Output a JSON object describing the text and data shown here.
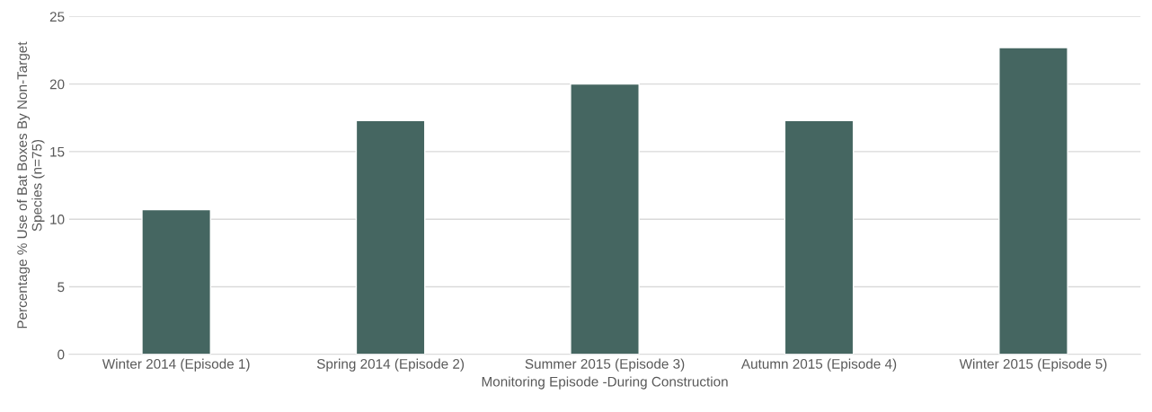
{
  "chart_data": {
    "type": "bar",
    "categories": [
      "Winter 2014 (Episode 1)",
      "Spring 2014 (Episode 2)",
      "Summer 2015 (Episode 3)",
      "Autumn 2015 (Episode 4)",
      "Winter 2015 (Episode 5)"
    ],
    "values": [
      10.7,
      17.3,
      20,
      17.3,
      22.7
    ],
    "color": "#456661",
    "xlabel": "Monitoring Episode -During Construction",
    "ylabel": "Percentage % Use of Bat Boxes By Non-Target\nSpecies (n=75)",
    "ylim": [
      0,
      25
    ],
    "yticks": [
      0,
      5,
      10,
      15,
      20,
      25
    ],
    "grid": "y"
  }
}
